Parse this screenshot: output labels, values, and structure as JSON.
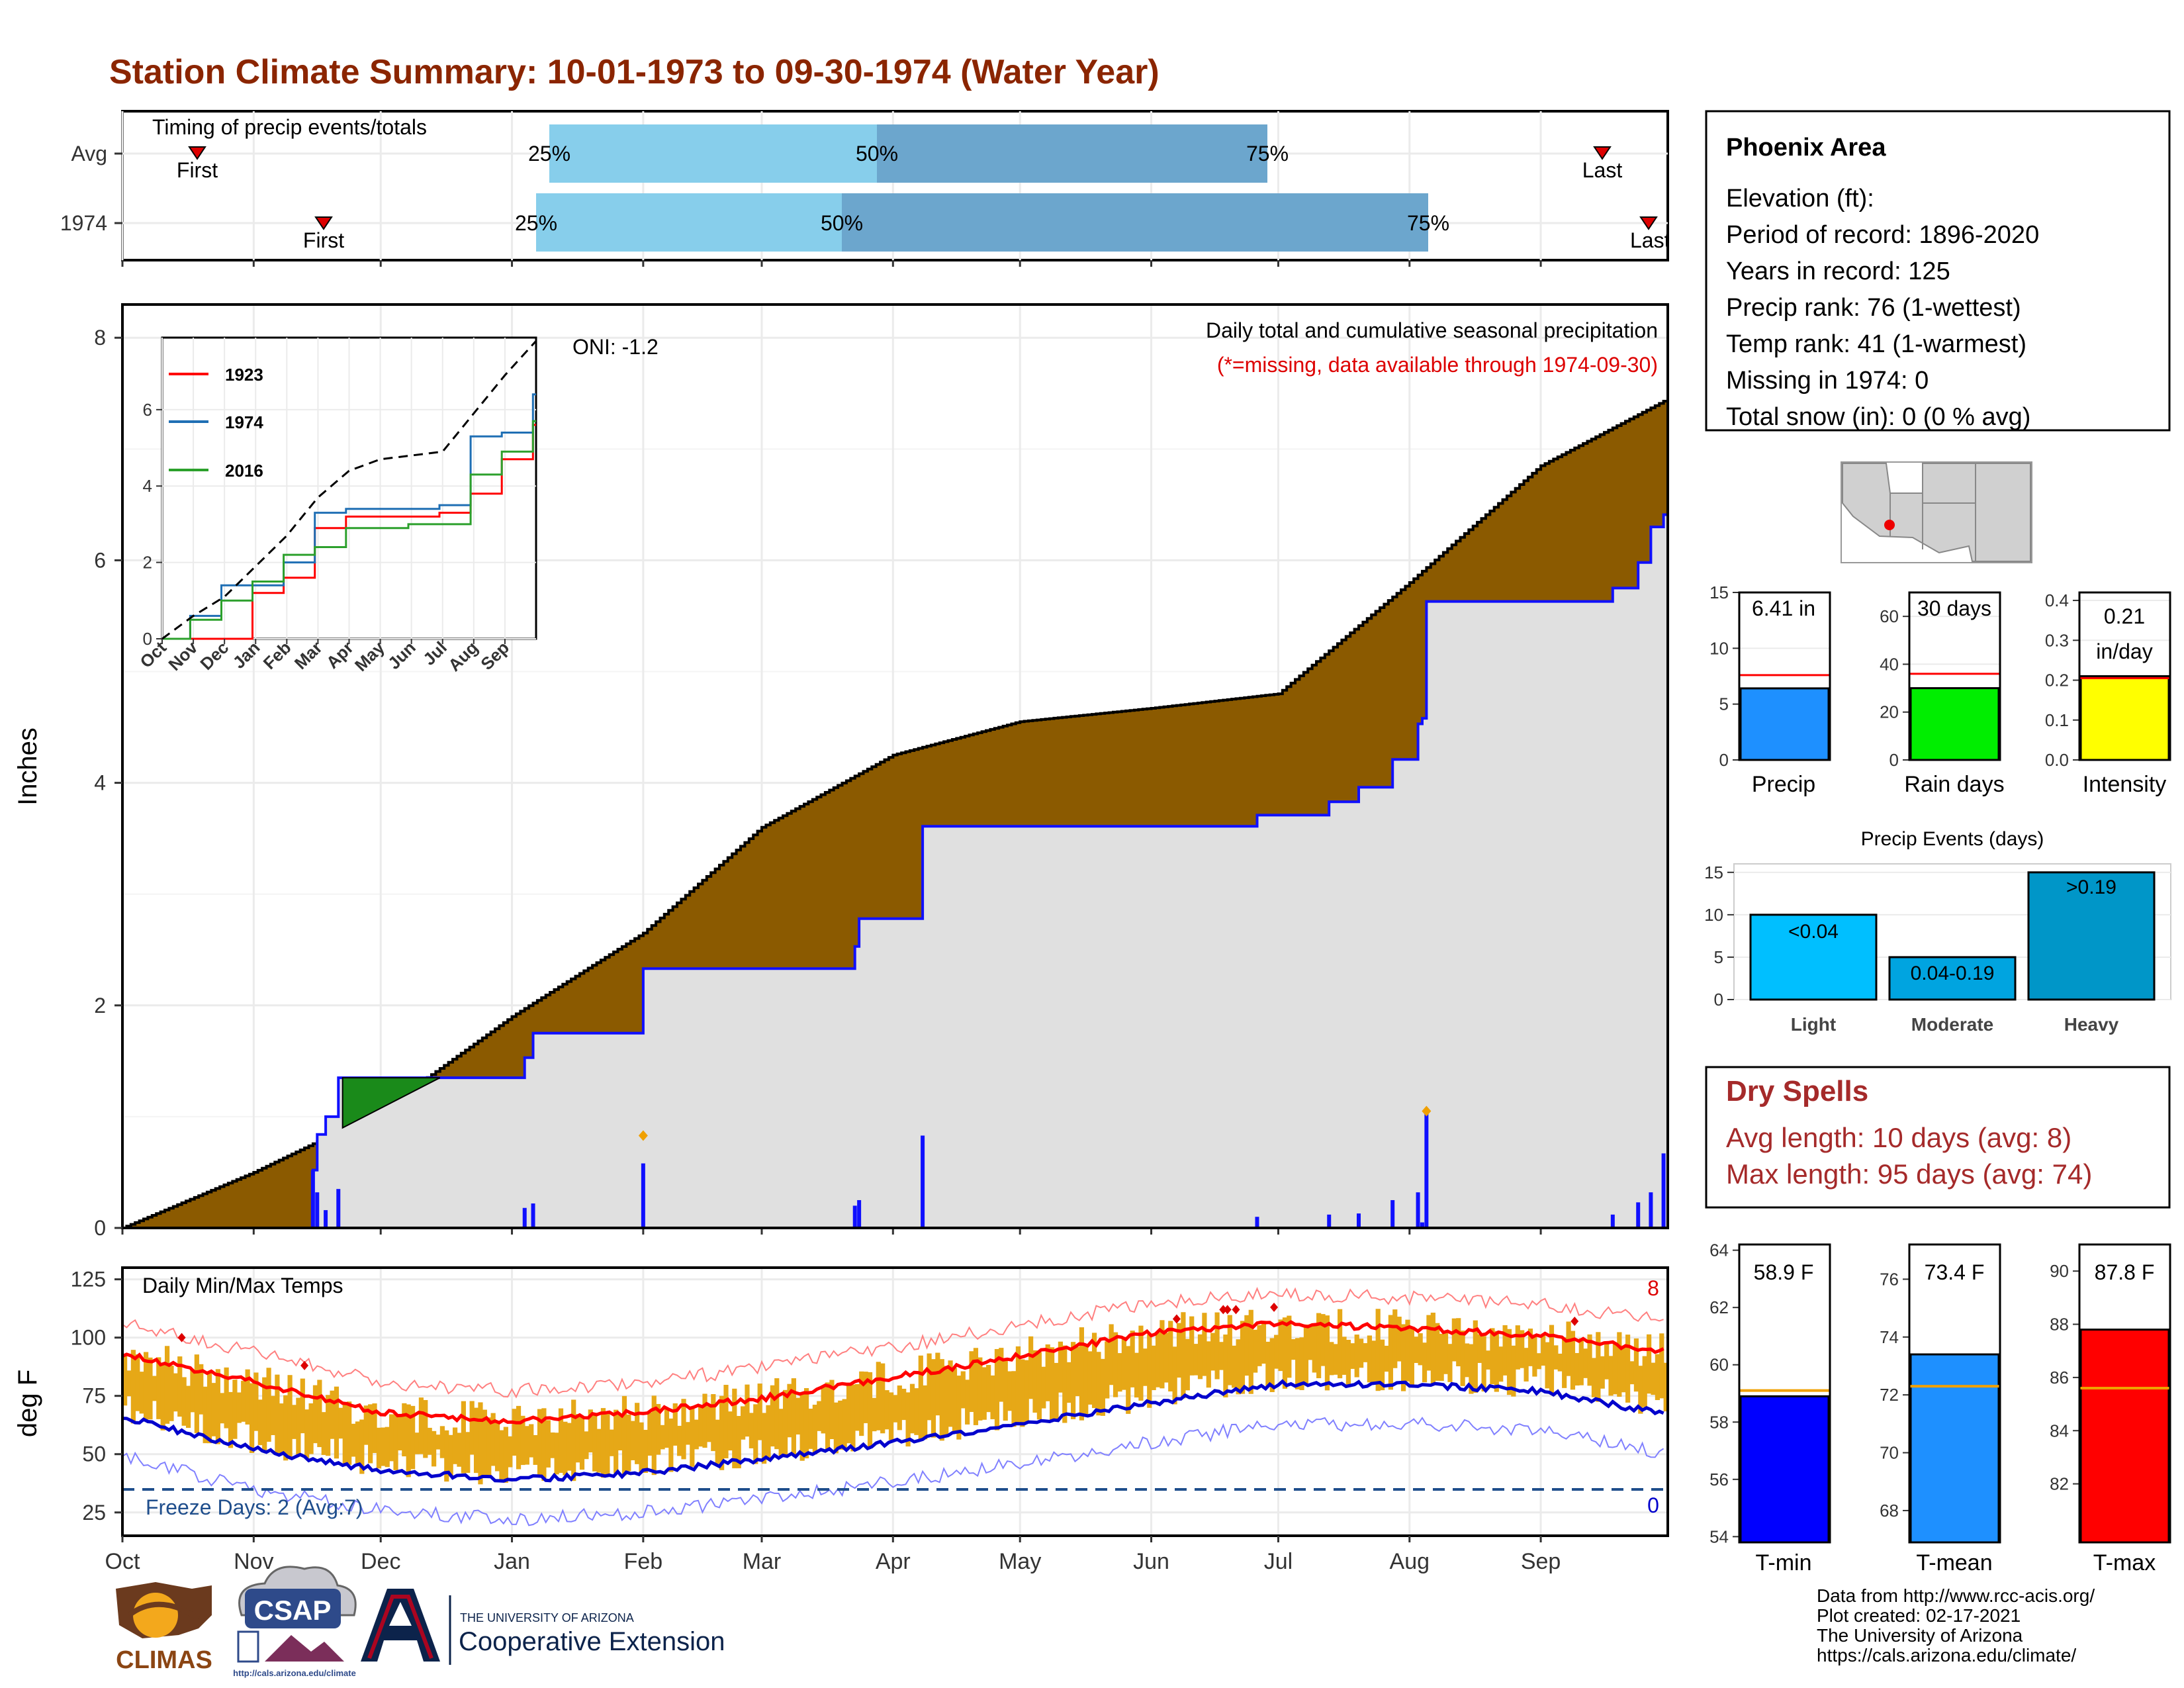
{
  "title": "Station Climate Summary: 10-01-1973 to 09-30-1974 (Water Year)",
  "colors": {
    "title": "#8b2500",
    "accum_fill": "#8b5a00",
    "deficit_fill": "#1a8a1a",
    "season_fill": "#e0e0e0",
    "daily_bar": "#1010ff",
    "temp_bar": "#e6a817",
    "tmax_line": "#ff0000",
    "tmin_line": "#0000cc",
    "dry_spell": "#a52a2a",
    "bar_light_blue": "#87ceeb",
    "bar_mid_blue": "#6ca6cd"
  },
  "timing": {
    "title": "Timing of precip events/totals",
    "rows": [
      {
        "label": "Avg",
        "first": "First",
        "last": "Last",
        "q25": "25%",
        "q50": "50%",
        "q75": "75%"
      },
      {
        "label": "1974",
        "first": "First",
        "last": "Last",
        "q25": "25%",
        "q50": "50%",
        "q75": "75%"
      }
    ]
  },
  "precip_panel": {
    "ylabel": "Inches",
    "yticks": [
      "0",
      "2",
      "4",
      "6",
      "8"
    ],
    "oni": "ONI: -1.2",
    "caption1": "Daily total and cumulative seasonal precipitation",
    "caption2": "(*=missing, data available through 1974-09-30)"
  },
  "inset": {
    "legend": [
      "1923",
      "1974",
      "2016"
    ],
    "legend_colors": [
      "#ff0000",
      "#1f6fb4",
      "#2ca02c"
    ],
    "yticks": [
      "0",
      "2",
      "4",
      "6"
    ],
    "xticks": [
      "Oct",
      "Nov",
      "Dec",
      "Jan",
      "Feb",
      "Mar",
      "Apr",
      "May",
      "Jun",
      "Jul",
      "Aug",
      "Sep"
    ]
  },
  "temp_panel": {
    "title": "Daily Min/Max Temps",
    "ylabel": "deg F",
    "yticks": [
      "25",
      "50",
      "75",
      "100",
      "125"
    ],
    "freeze": "Freeze Days: 2 (Avg:7)",
    "hot_count": "8",
    "cold_count": "0",
    "months": [
      "Oct",
      "Nov",
      "Dec",
      "Jan",
      "Feb",
      "Mar",
      "Apr",
      "May",
      "Jun",
      "Jul",
      "Aug",
      "Sep"
    ]
  },
  "station": {
    "name": "Phoenix Area",
    "lines": [
      "Elevation (ft):",
      "Period of record: 1896-2020",
      "Years in record: 125",
      "Precip rank: 76 (1-wettest)",
      "Temp rank: 41 (1-warmest)",
      "Missing in 1974: 0",
      "Total snow (in): 0 (0 % avg)"
    ]
  },
  "mini_bars": [
    {
      "label": "Precip",
      "value_text": "6.41 in",
      "yticks": [
        "0",
        "5",
        "10",
        "15"
      ]
    },
    {
      "label": "Rain days",
      "value_text": "30 days",
      "yticks": [
        "0",
        "20",
        "40",
        "60"
      ]
    },
    {
      "label": "Intensity",
      "value_text": "0.21\nin/day",
      "value_line1": "0.21",
      "value_line2": "in/day",
      "yticks": [
        "0.0",
        "0.1",
        "0.2",
        "0.3",
        "0.4"
      ]
    }
  ],
  "precip_events": {
    "title": "Precip Events (days)",
    "yticks": [
      "0",
      "5",
      "10",
      "15"
    ],
    "bars": [
      {
        "label": "Light",
        "value_text": "<0.04"
      },
      {
        "label": "Moderate",
        "value_text": "0.04-0.19"
      },
      {
        "label": "Heavy",
        "value_text": ">0.19"
      }
    ]
  },
  "dry_spells": {
    "title": "Dry Spells",
    "avg": "Avg length: 10 days (avg: 8)",
    "max": "Max length: 95 days (avg: 74)"
  },
  "temp_bars": [
    {
      "label": "T-min",
      "value_text": "58.9 F",
      "yticks": [
        "54",
        "56",
        "58",
        "60",
        "62",
        "64"
      ]
    },
    {
      "label": "T-mean",
      "value_text": "73.4 F",
      "yticks": [
        "68",
        "70",
        "72",
        "74",
        "76"
      ]
    },
    {
      "label": "T-max",
      "value_text": "87.8 F",
      "yticks": [
        "82",
        "84",
        "86",
        "88",
        "90"
      ]
    }
  ],
  "footer": {
    "line1": "Data from http://www.rcc-acis.org/",
    "line2": "Plot created: 02-17-2021",
    "line3": "The University of Arizona",
    "line4": "https://cals.arizona.edu/climate/"
  },
  "logos": {
    "climas": "CLIMAS",
    "csap": "CSAP",
    "csap_url": "http://cals.arizona.edu/climate",
    "ua_line1": "THE UNIVERSITY OF ARIZONA",
    "ua_line2": "Cooperative Extension"
  },
  "chart_data": [
    {
      "type": "bar",
      "title": "Timing of precip events/totals",
      "categories": [
        "Avg",
        "1974"
      ],
      "series": [
        {
          "name": "First",
          "values": [
            "Oct 20",
            "Nov 15"
          ]
        },
        {
          "name": "25%",
          "values": [
            "Jan 8",
            "Jan 5"
          ]
        },
        {
          "name": "50%",
          "values": [
            "Mar 25",
            "Mar 17"
          ]
        },
        {
          "name": "75%",
          "values": [
            "Jun 30",
            "Aug 6"
          ]
        },
        {
          "name": "Last",
          "values": [
            "Sep 12",
            "Sep 28"
          ]
        }
      ]
    },
    {
      "type": "area",
      "title": "Daily total and cumulative seasonal precipitation",
      "ylabel": "Inches",
      "ylim": [
        0,
        8
      ],
      "x": [
        "Oct",
        "Nov",
        "Dec",
        "Jan",
        "Feb",
        "Mar",
        "Apr",
        "May",
        "Jun",
        "Jul",
        "Aug",
        "Sep",
        "Sep 30"
      ],
      "series": [
        {
          "name": "1974",
          "values": [
            0,
            0,
            1.35,
            1.35,
            1.95,
            1.95,
            3.35,
            3.35,
            3.35,
            3.45,
            5.35,
            5.35,
            6.41
          ]
        },
        {
          "name": "Avg",
          "values": [
            0,
            0.5,
            1.05,
            1.9,
            2.65,
            3.6,
            4.25,
            4.55,
            4.67,
            4.8,
            5.8,
            6.85,
            7.45
          ]
        }
      ]
    },
    {
      "type": "line",
      "title": "Inset cumulative precipitation",
      "x": [
        "Oct",
        "Nov",
        "Dec",
        "Jan",
        "Feb",
        "Mar",
        "Apr",
        "May",
        "Jun",
        "Jul",
        "Aug",
        "Sep",
        "Sep 30"
      ],
      "series": [
        {
          "name": "1923",
          "values": [
            0,
            0,
            0,
            1.2,
            1.6,
            2.9,
            3.2,
            3.2,
            3.2,
            3.3,
            3.8,
            4.7,
            5.6
          ]
        },
        {
          "name": "1974",
          "values": [
            0,
            0.6,
            1.4,
            1.4,
            2.0,
            3.3,
            3.4,
            3.4,
            3.4,
            3.5,
            5.3,
            5.4,
            6.4
          ]
        },
        {
          "name": "2016",
          "values": [
            0,
            0.5,
            1.0,
            1.5,
            2.2,
            2.4,
            2.9,
            2.9,
            3.0,
            3.0,
            4.3,
            4.9,
            5.7
          ]
        },
        {
          "values": [
            0,
            0.6,
            1.1,
            1.9,
            2.7,
            3.7,
            4.4,
            4.7,
            4.8,
            4.9,
            5.9,
            6.9,
            7.8
          ]
        }
      ]
    },
    {
      "type": "line",
      "title": "Daily Min/Max Temps",
      "ylabel": "deg F",
      "ylim": [
        15,
        130
      ],
      "x": [
        "Oct",
        "Nov",
        "Dec",
        "Jan",
        "Feb",
        "Mar",
        "Apr",
        "May",
        "Jun",
        "Jul",
        "Aug",
        "Sep",
        "Sep 30"
      ],
      "series": [
        {
          "name": "Avg Max",
          "values": [
            93,
            81,
            68,
            64,
            68,
            74,
            83,
            92,
            102,
            106,
            104,
            101,
            94
          ]
        },
        {
          "name": "Avg Min",
          "values": [
            66,
            52,
            43,
            39,
            42,
            48,
            55,
            63,
            72,
            80,
            80,
            77,
            67
          ]
        }
      ]
    },
    {
      "type": "bar",
      "title": "Precip Events (days)",
      "categories": [
        "Light",
        "Moderate",
        "Heavy"
      ],
      "values": [
        10,
        5,
        15
      ],
      "ylim": [
        0,
        16
      ]
    },
    {
      "type": "bar",
      "categories": [
        "Precip",
        "Rain days",
        "Intensity"
      ],
      "values": [
        6.41,
        30,
        0.21
      ]
    },
    {
      "type": "bar",
      "categories": [
        "T-min",
        "T-mean",
        "T-max"
      ],
      "values": [
        58.9,
        73.4,
        87.8
      ]
    }
  ]
}
